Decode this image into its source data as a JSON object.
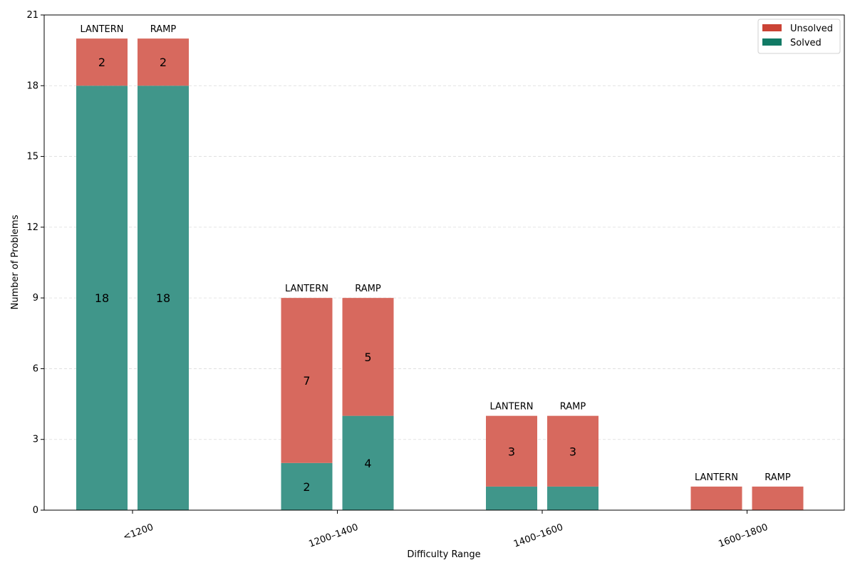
{
  "chart_data": {
    "type": "bar",
    "stacked": true,
    "xlabel": "Difficulty Range",
    "ylabel": "Number of Problems",
    "ylim": [
      0,
      21
    ],
    "yticks": [
      0,
      3,
      6,
      9,
      12,
      15,
      18,
      21
    ],
    "grid": "y-dashed",
    "categories": [
      "<1200",
      "1200–1400",
      "1400–1600",
      "1600–1800"
    ],
    "methods": [
      "LANTERN",
      "RAMP"
    ],
    "series": [
      {
        "name": "Solved",
        "color": "#117a65",
        "values": {
          "LANTERN": [
            18,
            2,
            1,
            0
          ],
          "RAMP": [
            18,
            4,
            1,
            0
          ]
        },
        "labels": {
          "LANTERN": [
            "18",
            "2",
            "",
            ""
          ],
          "RAMP": [
            "18",
            "4",
            "",
            ""
          ]
        }
      },
      {
        "name": "Unsolved",
        "color": "#cb4335",
        "values": {
          "LANTERN": [
            2,
            7,
            3,
            1
          ],
          "RAMP": [
            2,
            5,
            3,
            1
          ]
        },
        "labels": {
          "LANTERN": [
            "2",
            "7",
            "3",
            ""
          ],
          "RAMP": [
            "2",
            "5",
            "3",
            ""
          ]
        }
      }
    ],
    "legend": {
      "position": "top-right",
      "entries": [
        "Unsolved",
        "Solved"
      ]
    }
  }
}
